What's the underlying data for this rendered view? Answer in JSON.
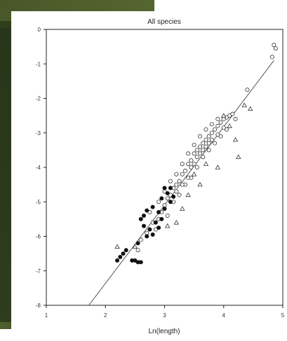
{
  "chart_data": {
    "type": "scatter",
    "title": "All species",
    "xlabel": "Ln(length)",
    "ylabel": "",
    "xlim": [
      1,
      5
    ],
    "ylim": [
      -8,
      0
    ],
    "x_ticks": [
      1,
      2,
      3,
      4,
      5
    ],
    "y_ticks": [
      0,
      -1,
      -2,
      -3,
      -4,
      -5,
      -6,
      -7,
      -8
    ],
    "grid": false,
    "legend": "none",
    "colors": {
      "background_photo_dark": "#1f2a12",
      "background_photo_mid": "#4a5a2a",
      "point_open": "#ffffff",
      "point_stroke": "#333333",
      "point_filled": "#111111",
      "fit_line": "#555555"
    },
    "fit_line": {
      "x": [
        1.72,
        4.85
      ],
      "y": [
        -8.0,
        -0.9
      ]
    },
    "series": [
      {
        "marker": "circle-open",
        "points": [
          [
            2.95,
            -5.3
          ],
          [
            3.0,
            -5.1
          ],
          [
            3.05,
            -4.9
          ],
          [
            3.1,
            -4.8
          ],
          [
            3.15,
            -4.6
          ],
          [
            3.2,
            -4.5
          ],
          [
            3.25,
            -4.4
          ],
          [
            3.3,
            -4.2
          ],
          [
            3.35,
            -4.1
          ],
          [
            3.4,
            -3.9
          ],
          [
            3.45,
            -3.8
          ],
          [
            3.5,
            -3.6
          ],
          [
            3.55,
            -3.5
          ],
          [
            3.6,
            -3.4
          ],
          [
            3.65,
            -3.3
          ],
          [
            3.7,
            -3.2
          ],
          [
            3.75,
            -3.1
          ],
          [
            3.8,
            -3.0
          ],
          [
            3.85,
            -2.9
          ],
          [
            3.9,
            -2.8
          ],
          [
            3.95,
            -2.7
          ],
          [
            4.0,
            -2.6
          ],
          [
            4.05,
            -2.55
          ],
          [
            4.1,
            -2.5
          ],
          [
            3.0,
            -4.7
          ],
          [
            3.1,
            -4.4
          ],
          [
            3.2,
            -4.2
          ],
          [
            3.3,
            -3.9
          ],
          [
            3.4,
            -3.6
          ],
          [
            3.5,
            -3.35
          ],
          [
            3.6,
            -3.1
          ],
          [
            3.7,
            -2.9
          ],
          [
            3.8,
            -2.75
          ],
          [
            3.9,
            -2.6
          ],
          [
            3.05,
            -5.4
          ],
          [
            3.15,
            -5.0
          ],
          [
            3.25,
            -4.8
          ],
          [
            3.35,
            -4.5
          ],
          [
            3.45,
            -4.3
          ],
          [
            3.55,
            -4.0
          ],
          [
            3.65,
            -3.7
          ],
          [
            3.75,
            -3.5
          ],
          [
            3.85,
            -3.3
          ],
          [
            3.95,
            -3.1
          ],
          [
            4.05,
            -2.9
          ],
          [
            2.8,
            -5.6
          ],
          [
            2.85,
            -5.8
          ],
          [
            2.9,
            -5.5
          ],
          [
            3.5,
            -3.9
          ],
          [
            3.6,
            -3.6
          ],
          [
            3.7,
            -3.4
          ],
          [
            3.8,
            -3.2
          ],
          [
            4.15,
            -2.45
          ],
          [
            4.2,
            -2.6
          ],
          [
            3.2,
            -4.7
          ],
          [
            3.3,
            -4.5
          ],
          [
            2.6,
            -6.1
          ],
          [
            2.55,
            -6.4
          ],
          [
            2.7,
            -5.9
          ],
          [
            4.4,
            -1.75
          ],
          [
            4.82,
            -0.8
          ],
          [
            4.85,
            -0.45
          ],
          [
            4.88,
            -0.55
          ],
          [
            3.4,
            -4.3
          ],
          [
            3.45,
            -4.0
          ],
          [
            3.55,
            -3.7
          ],
          [
            3.65,
            -3.5
          ],
          [
            3.75,
            -3.3
          ],
          [
            3.9,
            -3.05
          ],
          [
            4.0,
            -2.85
          ],
          [
            2.75,
            -5.3
          ],
          [
            2.9,
            -5.0
          ]
        ]
      },
      {
        "marker": "circle-filled",
        "points": [
          [
            2.85,
            -5.6
          ],
          [
            2.9,
            -5.3
          ],
          [
            2.95,
            -5.5
          ],
          [
            3.0,
            -5.2
          ],
          [
            3.05,
            -4.75
          ],
          [
            3.1,
            -5.0
          ],
          [
            2.75,
            -5.8
          ],
          [
            2.7,
            -6.0
          ],
          [
            2.8,
            -5.95
          ],
          [
            2.65,
            -5.4
          ],
          [
            2.6,
            -5.5
          ],
          [
            2.65,
            -5.7
          ],
          [
            3.15,
            -4.85
          ],
          [
            3.0,
            -4.6
          ],
          [
            2.9,
            -5.75
          ],
          [
            2.55,
            -6.2
          ],
          [
            2.45,
            -6.7
          ],
          [
            2.5,
            -6.7
          ],
          [
            2.55,
            -6.75
          ],
          [
            2.6,
            -6.75
          ],
          [
            2.3,
            -6.5
          ],
          [
            2.25,
            -6.6
          ],
          [
            2.2,
            -6.7
          ],
          [
            2.35,
            -6.4
          ],
          [
            2.95,
            -4.9
          ],
          [
            3.1,
            -4.6
          ],
          [
            2.8,
            -5.15
          ],
          [
            2.7,
            -5.25
          ]
        ]
      },
      {
        "marker": "triangle-open",
        "points": [
          [
            4.2,
            -3.2
          ],
          [
            4.25,
            -3.7
          ],
          [
            3.9,
            -4.0
          ],
          [
            3.6,
            -4.5
          ],
          [
            3.4,
            -4.8
          ],
          [
            3.2,
            -5.6
          ],
          [
            3.05,
            -5.7
          ],
          [
            4.35,
            -2.2
          ],
          [
            4.45,
            -2.3
          ],
          [
            4.0,
            -2.5
          ],
          [
            3.7,
            -3.9
          ],
          [
            3.5,
            -4.2
          ],
          [
            3.3,
            -5.2
          ],
          [
            2.5,
            -6.3
          ],
          [
            2.2,
            -6.3
          ],
          [
            4.1,
            -2.8
          ]
        ]
      }
    ]
  }
}
